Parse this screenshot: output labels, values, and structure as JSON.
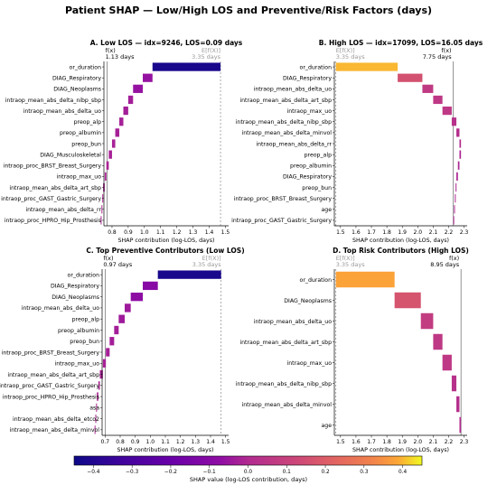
{
  "figure": {
    "suptitle": "Patient SHAP — Low/High LOS and Preventive/Risk Factors (days)",
    "colorbar_label": "SHAP value (log-LOS contribution, days)",
    "colorbar_ticks": [
      "−0.4",
      "−0.3",
      "−0.2",
      "−0.1",
      "0.0",
      "0.1",
      "0.2",
      "0.3",
      "0.4"
    ]
  },
  "chart_data": [
    {
      "type": "bar",
      "orientation": "waterfall-horizontal",
      "title": "A. Low LOS — idx=9246, LOS=0.09 days",
      "xlabel": "SHAP contribution (log-LOS, days)",
      "fx_label": "f(x)",
      "fx_value_text": "1.13 days",
      "fx": 0.77,
      "efx_label": "E[f(X)]",
      "efx_value_text": "3.35 days",
      "efx": 1.47,
      "xlim": [
        0.75,
        1.52
      ],
      "xticks": [
        "0.8",
        "0.9",
        "1.0",
        "1.1",
        "1.2",
        "1.3",
        "1.4",
        "1.5"
      ],
      "features": [
        "or_duration",
        "DIAG_Respiratory",
        "DIAG_Neoplasms",
        "intraop_mean_abs_delta_nibp_sbp",
        "intraop_mean_abs_delta_uo",
        "preop_alp",
        "preop_albumin",
        "preop_bun",
        "DIAG_Musculoskeletal",
        "intraop_proc_BRST_Breast_Surgery",
        "intraop_max_uo",
        "intraop_mean_abs_delta_art_sbp",
        "intraop_proc_GAST_Gastric_Surgery",
        "intraop_mean_abs_delta_rr",
        "intraop_proc_HPRO_Hip_Prosthesis"
      ],
      "values": [
        -0.42,
        -0.06,
        -0.06,
        -0.03,
        -0.03,
        -0.025,
        -0.025,
        -0.02,
        -0.02,
        -0.015,
        -0.01,
        -0.01,
        -0.005,
        -0.005,
        -0.005
      ]
    },
    {
      "type": "bar",
      "orientation": "waterfall-horizontal",
      "title": "B. High LOS — idx=17099, LOS=16.05 days",
      "xlabel": "SHAP contribution (log-LOS, days)",
      "fx_label": "f(x)",
      "fx_value_text": "7.75 days",
      "fx": 2.23,
      "efx_label": "E[f(X)]",
      "efx_value_text": "3.35 days",
      "efx": 1.47,
      "xlim": [
        1.46,
        2.32
      ],
      "xticks": [
        "1.5",
        "1.6",
        "1.7",
        "1.8",
        "1.9",
        "2.0",
        "2.1",
        "2.2",
        "2.3"
      ],
      "features": [
        "or_duration",
        "DIAG_Respiratory",
        "intraop_mean_abs_delta_uo",
        "intraop_mean_abs_delta_art_sbp",
        "intraop_max_uo",
        "intraop_mean_abs_delta_nibp_sbp",
        "intraop_mean_abs_delta_minvol",
        "intraop_mean_abs_delta_rr",
        "preop_alp",
        "preop_albumin",
        "DIAG_Respiratory",
        "preop_bun",
        "intraop_proc_BRST_Breast_Surgery",
        "age",
        "intraop_proc_GAST_Gastric_Surgery"
      ],
      "values": [
        0.4,
        0.16,
        0.07,
        0.06,
        0.06,
        0.03,
        0.02,
        0.01,
        -0.01,
        -0.01,
        -0.01,
        -0.005,
        -0.005,
        -0.005,
        -0.005
      ]
    },
    {
      "type": "bar",
      "orientation": "waterfall-horizontal",
      "title": "C. Top Preventive Contributors (Low LOS)",
      "xlabel": "SHAP contribution (log-LOS, days)",
      "fx_label": "f(x)",
      "fx_value_text": "0.97 days",
      "fx": 0.7,
      "efx_label": "E[f(X)]",
      "efx_value_text": "3.35 days",
      "efx": 1.47,
      "xlim": [
        0.68,
        1.52
      ],
      "xticks": [
        "0.7",
        "0.8",
        "0.9",
        "1.0",
        "1.1",
        "1.2",
        "1.3",
        "1.4",
        "1.5"
      ],
      "features": [
        "or_duration",
        "DIAG_Respiratory",
        "DIAG_Neoplasms",
        "intraop_mean_abs_delta_uo",
        "preop_alp",
        "preop_albumin",
        "preop_bun",
        "intraop_proc_BRST_Breast_Surgery",
        "intraop_max_uo",
        "intraop_mean_abs_delta_art_sbp",
        "intraop_proc_GAST_Gastric_Surgery",
        "intraop_proc_HPRO_Hip_Prosthesis",
        "asa",
        "intraop_mean_abs_delta_etco2",
        "intraop_mean_abs_delta_minvol"
      ],
      "values": [
        -0.42,
        -0.1,
        -0.08,
        -0.04,
        -0.04,
        -0.03,
        -0.03,
        -0.025,
        -0.02,
        -0.02,
        -0.01,
        -0.01,
        -0.005,
        -0.005,
        -0.005
      ]
    },
    {
      "type": "bar",
      "orientation": "waterfall-horizontal",
      "title": "D. Top Risk Contributors (High LOS)",
      "xlabel": "SHAP contribution (log-LOS, days)",
      "fx_label": "f(x)",
      "fx_value_text": "8.95 days",
      "fx": 2.28,
      "efx_label": "E[f(X)]",
      "efx_value_text": "3.35 days",
      "efx": 1.47,
      "xlim": [
        1.46,
        2.32
      ],
      "xticks": [
        "1.5",
        "1.6",
        "1.7",
        "1.8",
        "1.9",
        "2.0",
        "2.1",
        "2.2",
        "2.3"
      ],
      "features": [
        "or_duration",
        "DIAG_Neoplasms",
        "intraop_mean_abs_delta_uo",
        "intraop_mean_abs_delta_art_sbp",
        "intraop_max_uo",
        "intraop_mean_abs_delta_nibp_sbp",
        "intraop_mean_abs_delta_minvol",
        "age"
      ],
      "values": [
        0.38,
        0.17,
        0.08,
        0.06,
        0.06,
        0.03,
        0.02,
        0.01
      ]
    }
  ]
}
